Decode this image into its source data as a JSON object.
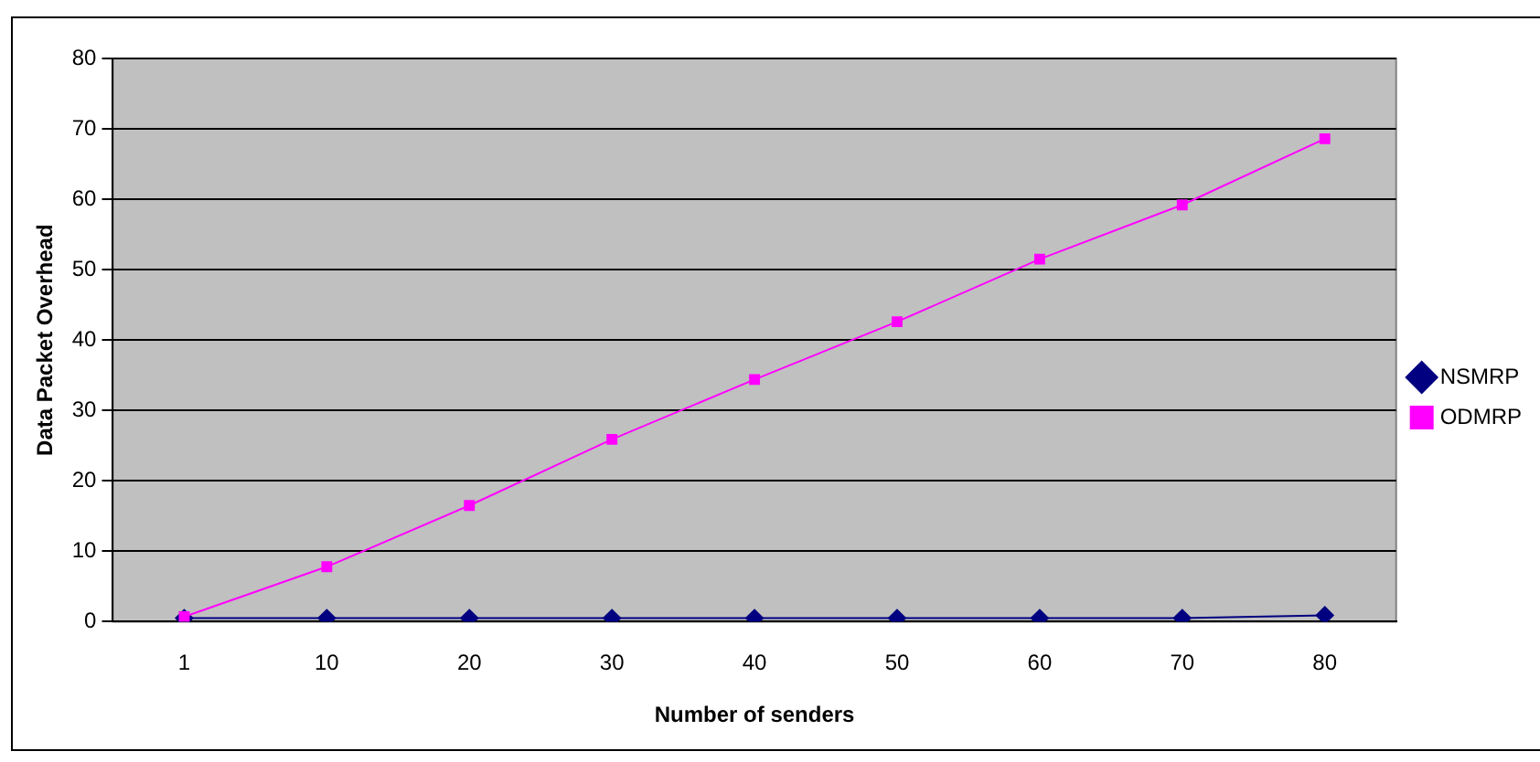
{
  "chart_data": {
    "type": "line",
    "xlabel": "Number of senders",
    "ylabel": "Data Packet Overhead",
    "categories": [
      "1",
      "10",
      "20",
      "30",
      "40",
      "50",
      "60",
      "70",
      "80"
    ],
    "series": [
      {
        "name": "NSMRP",
        "color": "#000080",
        "marker": "diamond",
        "values": [
          0.5,
          0.5,
          0.5,
          0.5,
          0.5,
          0.5,
          0.5,
          0.5,
          0.9
        ]
      },
      {
        "name": "ODMRP",
        "color": "#ff00ff",
        "marker": "square",
        "values": [
          0.7,
          7.8,
          16.5,
          25.9,
          34.4,
          42.6,
          51.5,
          59.2,
          68.6
        ]
      }
    ],
    "ylim": [
      0,
      80
    ],
    "yticks": [
      0,
      10,
      20,
      30,
      40,
      50,
      60,
      70,
      80
    ],
    "grid": "y",
    "legend": "right",
    "line_style": "solid"
  }
}
